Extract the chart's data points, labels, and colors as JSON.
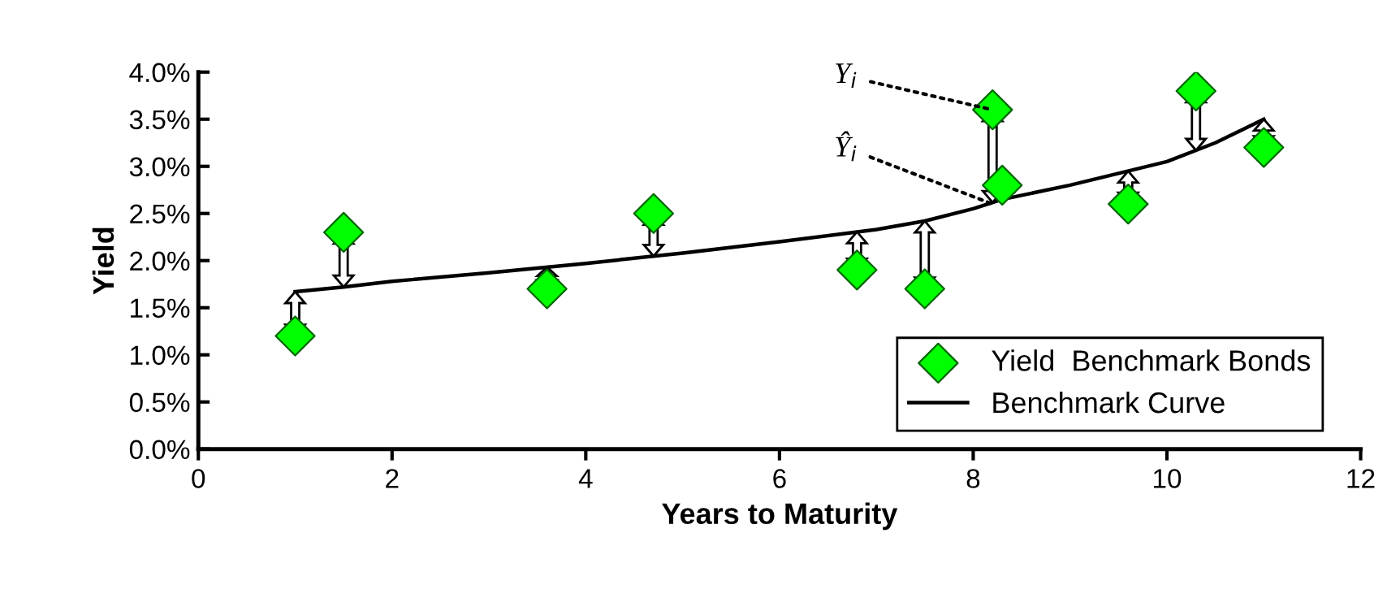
{
  "chart_data": {
    "type": "scatter",
    "xlabel": "Years to Maturity",
    "ylabel": "Yield",
    "series": [
      {
        "name": "Yield  Benchmark Bonds",
        "color": "#00ff00",
        "marker": "diamond",
        "x": [
          1,
          1.5,
          3.6,
          4.7,
          6.8,
          7.5,
          8.2,
          8.3,
          9.6,
          10.3,
          11
        ],
        "values": [
          1.2,
          2.3,
          1.7,
          2.5,
          1.9,
          1.7,
          3.6,
          2.8,
          2.6,
          3.8,
          3.2
        ]
      },
      {
        "name": "Benchmark Curve",
        "type": "line",
        "color": "#000000",
        "marker": "none",
        "line_style": "solid",
        "x": [
          1,
          1.5,
          2,
          3,
          4,
          5,
          6,
          7,
          7.5,
          8,
          8.3,
          9,
          10,
          10.5,
          11
        ],
        "values": [
          1.67,
          1.72,
          1.78,
          1.87,
          1.97,
          2.08,
          2.2,
          2.33,
          2.42,
          2.55,
          2.65,
          2.8,
          3.05,
          3.25,
          3.5
        ]
      }
    ],
    "annotations": [
      {
        "text": "Y$_{i}$",
        "x": 8.2,
        "y": 3.6
      },
      {
        "text": "Ŷ$_{i}$",
        "x": 8.2,
        "y": 2.6
      }
    ],
    "xlim": [
      0,
      12
    ],
    "xticks": [
      0,
      2,
      4,
      6,
      8,
      10,
      12
    ],
    "ylim": [
      0,
      4
    ],
    "yticks": [
      {
        "value": 0,
        "label": "0.0%"
      },
      {
        "value": 0.5,
        "label": "0.5%"
      },
      {
        "value": 1,
        "label": "1.0%"
      },
      {
        "value": 1.5,
        "label": "1.5%"
      },
      {
        "value": 2,
        "label": "2.0%"
      },
      {
        "value": 2.5,
        "label": "2.5%"
      },
      {
        "value": 3,
        "label": "3.0%"
      },
      {
        "value": 3.5,
        "label": "3.5%"
      },
      {
        "value": 4,
        "label": "4.0%"
      }
    ],
    "grid": false,
    "legend": "bottom right"
  }
}
